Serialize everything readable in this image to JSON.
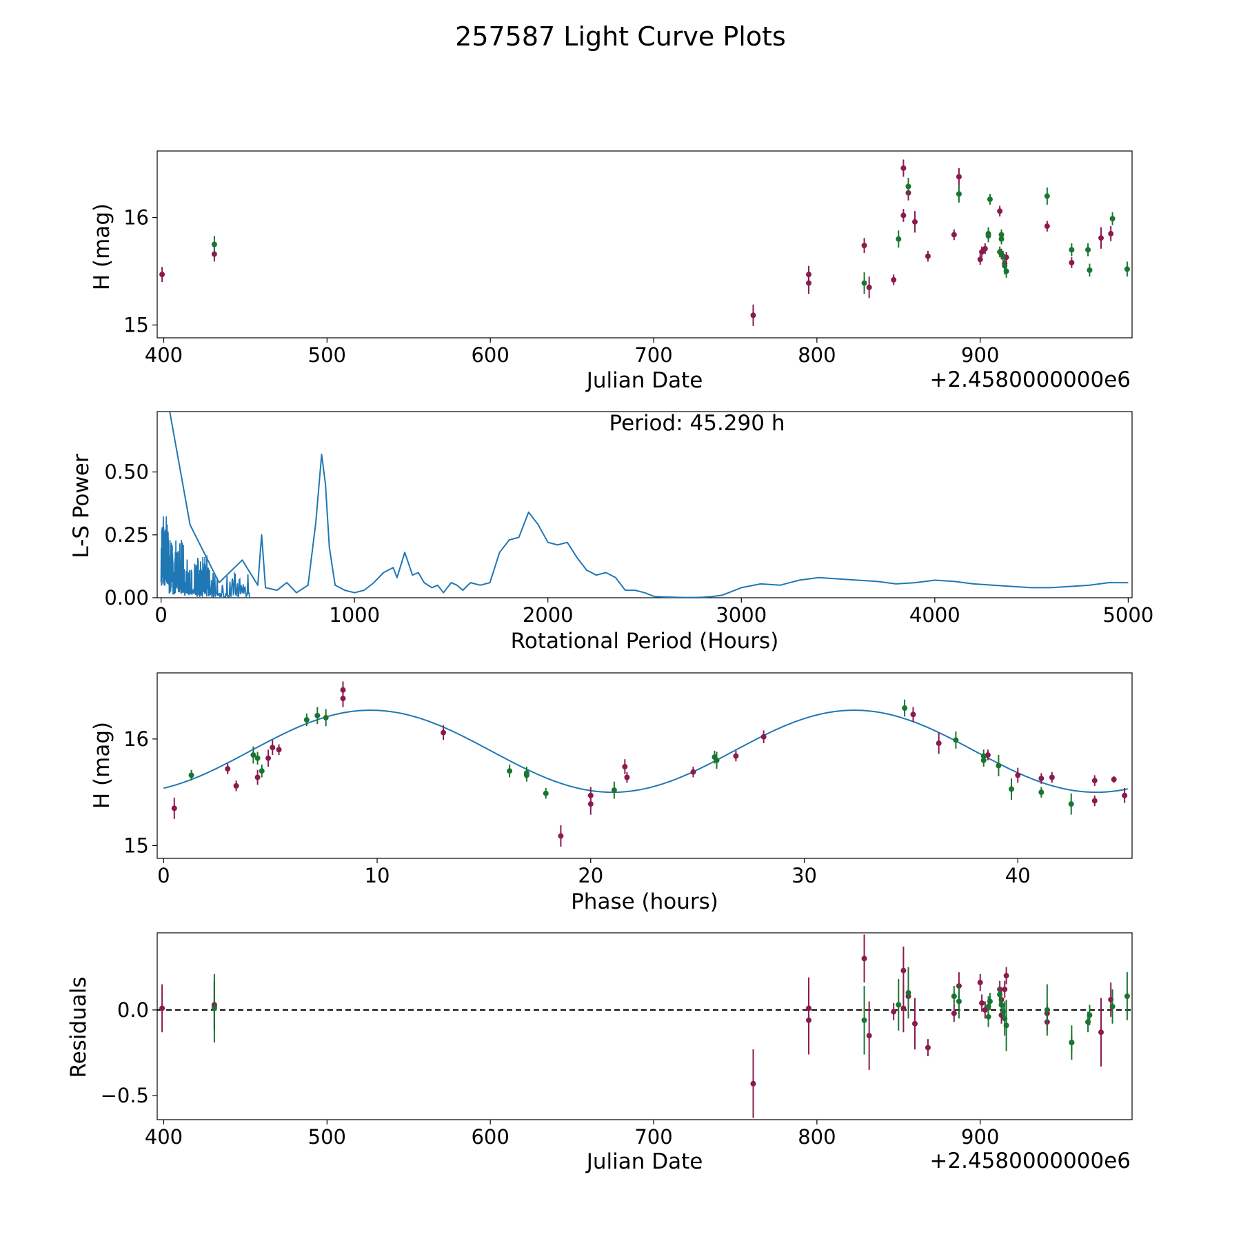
{
  "title": "257587 Light Curve Plots",
  "colors": {
    "red_band": "#8b1a4f",
    "green_band": "#1a7530",
    "curve": "#1f77b4",
    "zero_line": "#000000"
  },
  "chart_data": [
    {
      "id": "lightcurve",
      "type": "scatter",
      "xlabel": "Julian Date",
      "ylabel": "H (mag)",
      "x_offset_label": "+2.4580000000e6",
      "xlim": [
        396,
        993
      ],
      "ylim": [
        14.88,
        16.62
      ],
      "xticks": [
        400,
        500,
        600,
        700,
        800,
        900
      ],
      "yticks": [
        15,
        16
      ],
      "series": [
        {
          "name": "red",
          "color": "#8b1a4f",
          "points": [
            [
              399,
              15.47,
              0.07
            ],
            [
              431,
              15.66,
              0.07
            ],
            [
              761,
              15.09,
              0.1
            ],
            [
              795,
              15.47,
              0.08
            ],
            [
              795,
              15.39,
              0.1
            ],
            [
              829,
              15.74,
              0.07
            ],
            [
              832,
              15.35,
              0.1
            ],
            [
              847,
              15.42,
              0.05
            ],
            [
              853,
              16.02,
              0.06
            ],
            [
              853,
              16.46,
              0.08
            ],
            [
              856,
              16.23,
              0.07
            ],
            [
              860,
              15.96,
              0.1
            ],
            [
              868,
              15.64,
              0.05
            ],
            [
              884,
              15.84,
              0.05
            ],
            [
              887,
              16.38,
              0.08
            ],
            [
              900,
              15.61,
              0.05
            ],
            [
              901,
              15.68,
              0.05
            ],
            [
              903,
              15.71,
              0.05
            ],
            [
              912,
              16.06,
              0.05
            ],
            [
              913,
              15.66,
              0.05
            ],
            [
              915,
              15.57,
              0.05
            ],
            [
              916,
              15.63,
              0.05
            ],
            [
              941,
              15.92,
              0.05
            ],
            [
              956,
              15.58,
              0.05
            ],
            [
              974,
              15.81,
              0.1
            ],
            [
              980,
              15.85,
              0.07
            ]
          ]
        },
        {
          "name": "green",
          "color": "#1a7530",
          "points": [
            [
              431,
              15.75,
              0.08
            ],
            [
              829,
              15.39,
              0.1
            ],
            [
              850,
              15.8,
              0.08
            ],
            [
              856,
              16.29,
              0.08
            ],
            [
              887,
              16.22,
              0.08
            ],
            [
              905,
              15.83,
              0.06
            ],
            [
              905,
              15.85,
              0.06
            ],
            [
              906,
              16.17,
              0.05
            ],
            [
              912,
              15.68,
              0.05
            ],
            [
              913,
              15.8,
              0.05
            ],
            [
              913,
              15.84,
              0.05
            ],
            [
              914,
              15.64,
              0.05
            ],
            [
              915,
              15.55,
              0.08
            ],
            [
              916,
              15.5,
              0.06
            ],
            [
              941,
              16.2,
              0.08
            ],
            [
              956,
              15.7,
              0.06
            ],
            [
              966,
              15.7,
              0.06
            ],
            [
              967,
              15.51,
              0.06
            ],
            [
              981,
              15.99,
              0.06
            ],
            [
              990,
              15.52,
              0.07
            ]
          ]
        }
      ]
    },
    {
      "id": "periodogram",
      "type": "line",
      "xlabel": "Rotational Period (Hours)",
      "ylabel": "L-S Power",
      "annotation": "Period: 45.290 h",
      "xlim": [
        -20,
        5020
      ],
      "ylim": [
        0,
        0.74
      ],
      "xticks": [
        0,
        1000,
        2000,
        3000,
        4000,
        5000
      ],
      "ytick_labels": [
        "0.00",
        "0.25",
        "0.50"
      ],
      "yticks": [
        0,
        0.25,
        0.5
      ],
      "x": [
        45,
        150,
        300,
        420,
        500,
        520,
        540,
        600,
        650,
        700,
        760,
        800,
        830,
        850,
        870,
        900,
        950,
        1000,
        1050,
        1100,
        1150,
        1200,
        1220,
        1260,
        1300,
        1330,
        1360,
        1400,
        1430,
        1460,
        1500,
        1530,
        1560,
        1600,
        1650,
        1700,
        1750,
        1800,
        1850,
        1900,
        1950,
        2000,
        2050,
        2100,
        2150,
        2200,
        2250,
        2300,
        2350,
        2400,
        2450,
        2500,
        2550,
        2600,
        2650,
        2700,
        2750,
        2800,
        2850,
        2900,
        3000,
        3100,
        3200,
        3300,
        3400,
        3500,
        3600,
        3700,
        3800,
        3900,
        4000,
        4100,
        4200,
        4300,
        4400,
        4500,
        4600,
        4700,
        4800,
        4900,
        5000
      ],
      "y": [
        0.74,
        0.29,
        0.06,
        0.15,
        0.05,
        0.25,
        0.04,
        0.03,
        0.06,
        0.02,
        0.05,
        0.3,
        0.57,
        0.45,
        0.2,
        0.05,
        0.03,
        0.02,
        0.03,
        0.06,
        0.1,
        0.12,
        0.08,
        0.18,
        0.09,
        0.1,
        0.06,
        0.04,
        0.05,
        0.02,
        0.06,
        0.05,
        0.03,
        0.06,
        0.05,
        0.06,
        0.18,
        0.23,
        0.24,
        0.34,
        0.29,
        0.22,
        0.21,
        0.22,
        0.16,
        0.11,
        0.09,
        0.1,
        0.08,
        0.03,
        0.03,
        0.02,
        0.005,
        0.003,
        0.002,
        0.001,
        0.001,
        0.002,
        0.005,
        0.01,
        0.04,
        0.055,
        0.05,
        0.07,
        0.08,
        0.075,
        0.07,
        0.065,
        0.055,
        0.06,
        0.07,
        0.065,
        0.055,
        0.05,
        0.045,
        0.04,
        0.04,
        0.045,
        0.05,
        0.06,
        0.06
      ]
    },
    {
      "id": "phased",
      "type": "scatter",
      "xlabel": "Phase (hours)",
      "ylabel": "H (mag)",
      "xlim": [
        -0.3,
        45.35
      ],
      "ylim": [
        14.88,
        16.62
      ],
      "xticks": [
        0,
        10,
        20,
        30,
        40
      ],
      "yticks": [
        15,
        16
      ],
      "model": {
        "mean": 15.885,
        "amplitude": 0.385,
        "period_hours": 22.645,
        "peak_phase": 9.7
      },
      "series": [
        {
          "name": "red",
          "color": "#8b1a4f",
          "points": [
            [
              0.5,
              15.35,
              0.1
            ],
            [
              3.0,
              15.72,
              0.05
            ],
            [
              3.4,
              15.56,
              0.05
            ],
            [
              4.4,
              15.64,
              0.07
            ],
            [
              4.9,
              15.82,
              0.08
            ],
            [
              5.1,
              15.92,
              0.07
            ],
            [
              5.4,
              15.9,
              0.05
            ],
            [
              8.4,
              16.38,
              0.08
            ],
            [
              8.4,
              16.46,
              0.08
            ],
            [
              13.1,
              16.06,
              0.07
            ],
            [
              18.6,
              15.09,
              0.1
            ],
            [
              20.0,
              15.39,
              0.1
            ],
            [
              20.0,
              15.47,
              0.08
            ],
            [
              21.6,
              15.74,
              0.07
            ],
            [
              21.7,
              15.64,
              0.05
            ],
            [
              24.8,
              15.69,
              0.05
            ],
            [
              26.8,
              15.84,
              0.05
            ],
            [
              28.1,
              16.02,
              0.06
            ],
            [
              35.1,
              16.23,
              0.07
            ],
            [
              36.3,
              15.96,
              0.1
            ],
            [
              38.6,
              15.85,
              0.05
            ],
            [
              40.0,
              15.66,
              0.07
            ],
            [
              41.1,
              15.63,
              0.05
            ],
            [
              41.6,
              15.64,
              0.05
            ],
            [
              43.6,
              15.61,
              0.05
            ],
            [
              43.6,
              15.42,
              0.05
            ],
            [
              44.5,
              15.62,
              0.03
            ],
            [
              45.0,
              15.47,
              0.07
            ]
          ]
        },
        {
          "name": "green",
          "color": "#1a7530",
          "points": [
            [
              1.3,
              15.66,
              0.05
            ],
            [
              4.2,
              15.85,
              0.08
            ],
            [
              4.4,
              15.82,
              0.06
            ],
            [
              4.6,
              15.7,
              0.06
            ],
            [
              6.7,
              16.18,
              0.06
            ],
            [
              7.2,
              16.22,
              0.08
            ],
            [
              7.6,
              16.2,
              0.08
            ],
            [
              16.2,
              15.7,
              0.06
            ],
            [
              17.0,
              15.66,
              0.06
            ],
            [
              17.0,
              15.68,
              0.06
            ],
            [
              17.9,
              15.49,
              0.05
            ],
            [
              21.1,
              15.52,
              0.08
            ],
            [
              25.8,
              15.83,
              0.06
            ],
            [
              25.9,
              15.8,
              0.08
            ],
            [
              34.7,
              16.29,
              0.08
            ],
            [
              37.1,
              15.99,
              0.08
            ],
            [
              38.4,
              15.84,
              0.06
            ],
            [
              38.4,
              15.8,
              0.06
            ],
            [
              39.1,
              15.75,
              0.1
            ],
            [
              39.7,
              15.53,
              0.1
            ],
            [
              41.1,
              15.5,
              0.05
            ],
            [
              42.5,
              15.39,
              0.1
            ]
          ]
        }
      ]
    },
    {
      "id": "residuals",
      "type": "scatter",
      "xlabel": "Julian Date",
      "ylabel": "Residuals",
      "x_offset_label": "+2.4580000000e6",
      "xlim": [
        396,
        993
      ],
      "ylim": [
        -0.64,
        0.45
      ],
      "xticks": [
        400,
        500,
        600,
        700,
        800,
        900
      ],
      "ytick_labels": [
        "−0.5",
        "0.0"
      ],
      "yticks": [
        -0.5,
        0.0
      ],
      "zero_line": 0.0,
      "series": [
        {
          "name": "red",
          "color": "#8b1a4f",
          "points": [
            [
              399,
              0.01,
              0.14
            ],
            [
              431,
              0.03,
              0.14
            ],
            [
              431,
              0.02,
              0.14
            ],
            [
              761,
              -0.43,
              0.2
            ],
            [
              795,
              0.01,
              0.18
            ],
            [
              795,
              -0.06,
              0.2
            ],
            [
              829,
              0.3,
              0.14
            ],
            [
              832,
              -0.15,
              0.2
            ],
            [
              847,
              -0.01,
              0.05
            ],
            [
              853,
              0.23,
              0.14
            ],
            [
              853,
              0.01,
              0.14
            ],
            [
              856,
              0.08,
              0.06
            ],
            [
              860,
              -0.08,
              0.15
            ],
            [
              868,
              -0.22,
              0.05
            ],
            [
              884,
              -0.02,
              0.05
            ],
            [
              887,
              0.14,
              0.08
            ],
            [
              900,
              0.16,
              0.05
            ],
            [
              901,
              0.04,
              0.05
            ],
            [
              903,
              0.0,
              0.05
            ],
            [
              912,
              0.12,
              0.05
            ],
            [
              913,
              -0.03,
              0.05
            ],
            [
              913,
              0.06,
              0.05
            ],
            [
              915,
              0.12,
              0.05
            ],
            [
              916,
              0.2,
              0.05
            ],
            [
              941,
              -0.02,
              0.05
            ],
            [
              941,
              -0.07,
              0.05
            ],
            [
              956,
              -0.19,
              0.05
            ],
            [
              974,
              -0.13,
              0.2
            ],
            [
              980,
              0.06,
              0.1
            ]
          ]
        },
        {
          "name": "green",
          "color": "#1a7530",
          "points": [
            [
              431,
              0.01,
              0.2
            ],
            [
              829,
              -0.06,
              0.2
            ],
            [
              850,
              0.03,
              0.15
            ],
            [
              856,
              0.1,
              0.15
            ],
            [
              887,
              0.05,
              0.1
            ],
            [
              884,
              0.08,
              0.06
            ],
            [
              905,
              -0.04,
              0.06
            ],
            [
              905,
              0.02,
              0.06
            ],
            [
              906,
              0.05,
              0.05
            ],
            [
              912,
              0.09,
              0.05
            ],
            [
              913,
              0.03,
              0.05
            ],
            [
              914,
              -0.01,
              0.05
            ],
            [
              915,
              -0.05,
              0.1
            ],
            [
              916,
              -0.09,
              0.15
            ],
            [
              941,
              0.0,
              0.15
            ],
            [
              956,
              -0.19,
              0.1
            ],
            [
              966,
              -0.07,
              0.06
            ],
            [
              967,
              -0.03,
              0.06
            ],
            [
              981,
              0.02,
              0.1
            ],
            [
              990,
              0.08,
              0.14
            ]
          ]
        }
      ]
    }
  ]
}
